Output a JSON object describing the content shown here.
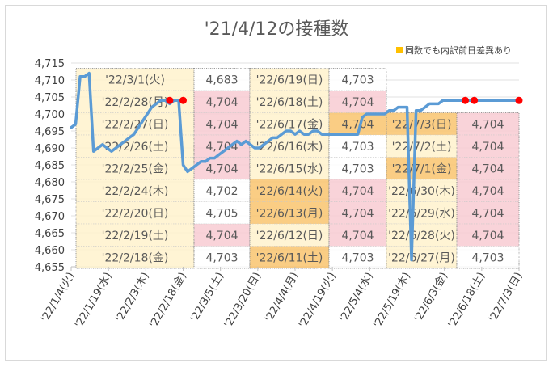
{
  "title": "'21/4/12の接種数",
  "legend": {
    "label": "同数でも内訳前日差異あり",
    "color": "#ffc000"
  },
  "colors": {
    "line": "#5b9bd5",
    "marker": "#ff0000",
    "cream": "#fff2cc",
    "pink": "#f8cbd2",
    "orange": "#f9c46e",
    "white": "#ffffff",
    "border": "#bfbfbf"
  },
  "chart_data": {
    "type": "line",
    "title": "'21/4/12の接種数",
    "xlabel": "",
    "ylabel": "",
    "ylim": [
      4655,
      4715
    ],
    "y_ticks": [
      "4,655",
      "4,660",
      "4,665",
      "4,670",
      "4,675",
      "4,680",
      "4,685",
      "4,690",
      "4,695",
      "4,700",
      "4,705",
      "4,710",
      "4,715"
    ],
    "x_ticks": [
      "'22/1/4(火)",
      "'22/1/19(水)",
      "'22/2/3(木)",
      "'22/2/18(金)",
      "'22/3/5(土)",
      "'22/3/20(日)",
      "'22/4/4(月)",
      "'22/4/19(火)",
      "'22/5/4(水)",
      "'22/5/19(木)",
      "'22/6/3(金)",
      "'22/6/18(土)",
      "'22/7/3(日)"
    ],
    "series": [
      {
        "values": [
          [
            0,
            4696
          ],
          [
            1,
            4697
          ],
          [
            2,
            4711
          ],
          [
            3,
            4711
          ],
          [
            4,
            4712
          ],
          [
            5,
            4689
          ],
          [
            6,
            4690
          ],
          [
            7,
            4691
          ],
          [
            8,
            4690
          ],
          [
            9,
            4689
          ],
          [
            10,
            4690
          ],
          [
            11,
            4691
          ],
          [
            12,
            4692
          ],
          [
            13,
            4693
          ],
          [
            14,
            4694
          ],
          [
            15,
            4696
          ],
          [
            16,
            4698
          ],
          [
            17,
            4700
          ],
          [
            18,
            4702
          ],
          [
            19,
            4703
          ],
          [
            20,
            4704
          ],
          [
            21,
            4704
          ],
          [
            22,
            4703
          ],
          [
            23,
            4704
          ],
          [
            24,
            4704
          ],
          [
            25,
            4685
          ],
          [
            26,
            4683
          ],
          [
            27,
            4684
          ],
          [
            28,
            4685
          ],
          [
            29,
            4686
          ],
          [
            30,
            4686
          ],
          [
            31,
            4687
          ],
          [
            32,
            4687
          ],
          [
            33,
            4688
          ],
          [
            34,
            4689
          ],
          [
            35,
            4690
          ],
          [
            36,
            4691
          ],
          [
            37,
            4692
          ],
          [
            38,
            4691
          ],
          [
            39,
            4692
          ],
          [
            40,
            4691
          ],
          [
            41,
            4690
          ],
          [
            42,
            4690
          ],
          [
            43,
            4691
          ],
          [
            44,
            4692
          ],
          [
            45,
            4693
          ],
          [
            46,
            4693
          ],
          [
            47,
            4694
          ],
          [
            48,
            4695
          ],
          [
            49,
            4695
          ],
          [
            50,
            4694
          ],
          [
            51,
            4695
          ],
          [
            52,
            4694
          ],
          [
            53,
            4694
          ],
          [
            54,
            4695
          ],
          [
            55,
            4695
          ],
          [
            56,
            4694
          ],
          [
            57,
            4694
          ],
          [
            58,
            4694
          ],
          [
            59,
            4694
          ],
          [
            60,
            4694
          ],
          [
            61,
            4694
          ],
          [
            62,
            4694
          ],
          [
            63,
            4694
          ],
          [
            64,
            4694
          ],
          [
            65,
            4699
          ],
          [
            66,
            4700
          ],
          [
            67,
            4700
          ],
          [
            68,
            4700
          ],
          [
            69,
            4700
          ],
          [
            70,
            4700
          ],
          [
            71,
            4701
          ],
          [
            72,
            4701
          ],
          [
            73,
            4702
          ],
          [
            74,
            4702
          ],
          [
            75,
            4702
          ],
          [
            76,
            4657
          ],
          [
            77,
            4701
          ],
          [
            78,
            4701
          ],
          [
            79,
            4702
          ],
          [
            80,
            4703
          ],
          [
            81,
            4703
          ],
          [
            82,
            4703
          ],
          [
            83,
            4704
          ],
          [
            84,
            4704
          ],
          [
            85,
            4704
          ],
          [
            86,
            4704
          ],
          [
            87,
            4704
          ],
          [
            88,
            4704
          ],
          [
            89,
            4704
          ],
          [
            90,
            4704
          ],
          [
            91,
            4704
          ],
          [
            92,
            4704
          ],
          [
            93,
            4704
          ],
          [
            94,
            4704
          ],
          [
            95,
            4704
          ],
          [
            96,
            4704
          ],
          [
            97,
            4704
          ],
          [
            98,
            4704
          ],
          [
            99,
            4704
          ],
          [
            100,
            4704
          ]
        ]
      }
    ],
    "markers": [
      [
        22,
        4704
      ],
      [
        25,
        4704
      ],
      [
        88,
        4704
      ],
      [
        90,
        4704
      ],
      [
        100,
        4704
      ]
    ],
    "x_range": [
      0,
      100
    ],
    "table": {
      "columns": [
        {
          "cells": [
            {
              "text": "'22/3/1(火)",
              "bg": "cream"
            },
            {
              "text": "'22/2/28(月)",
              "bg": "cream"
            },
            {
              "text": "'22/2/27(日)",
              "bg": "cream"
            },
            {
              "text": "'22/2/26(土)",
              "bg": "cream"
            },
            {
              "text": "'22/2/25(金)",
              "bg": "cream"
            },
            {
              "text": "'22/2/24(木)",
              "bg": "cream"
            },
            {
              "text": "'22/2/20(日)",
              "bg": "cream"
            },
            {
              "text": "'22/2/19(土)",
              "bg": "cream"
            },
            {
              "text": "'22/2/18(金)",
              "bg": "cream"
            }
          ]
        },
        {
          "cells": [
            {
              "text": "4,683",
              "bg": "white"
            },
            {
              "text": "4,704",
              "bg": "pink"
            },
            {
              "text": "4,704",
              "bg": "pink"
            },
            {
              "text": "4,704",
              "bg": "pink"
            },
            {
              "text": "4,704",
              "bg": "pink"
            },
            {
              "text": "4,702",
              "bg": "white"
            },
            {
              "text": "4,705",
              "bg": "white"
            },
            {
              "text": "4,704",
              "bg": "pink"
            },
            {
              "text": "4,703",
              "bg": "white"
            }
          ]
        },
        {
          "cells": [
            {
              "text": "'22/6/19(日)",
              "bg": "cream"
            },
            {
              "text": "'22/6/18(土)",
              "bg": "cream"
            },
            {
              "text": "'22/6/17(金)",
              "bg": "cream"
            },
            {
              "text": "'22/6/16(木)",
              "bg": "cream"
            },
            {
              "text": "'22/6/15(水)",
              "bg": "cream"
            },
            {
              "text": "'22/6/14(火)",
              "bg": "orange"
            },
            {
              "text": "'22/6/13(月)",
              "bg": "orange"
            },
            {
              "text": "'22/6/12(日)",
              "bg": "cream"
            },
            {
              "text": "'22/6/11(土)",
              "bg": "orange"
            }
          ]
        },
        {
          "cells": [
            {
              "text": "4,703",
              "bg": "white"
            },
            {
              "text": "4,704",
              "bg": "pink"
            },
            {
              "text": "4,704",
              "bg": "orange"
            },
            {
              "text": "4,703",
              "bg": "white"
            },
            {
              "text": "4,703",
              "bg": "white"
            },
            {
              "text": "4,704",
              "bg": "pink"
            },
            {
              "text": "4,704",
              "bg": "pink"
            },
            {
              "text": "4,704",
              "bg": "pink"
            },
            {
              "text": "4,703",
              "bg": "white"
            }
          ]
        },
        {
          "cells": [
            {
              "text": "'22/7/3(日)",
              "bg": "orange"
            },
            {
              "text": "'22/7/2(土)",
              "bg": "cream"
            },
            {
              "text": "'22/7/1(金)",
              "bg": "orange"
            },
            {
              "text": "'22/6/30(木)",
              "bg": "cream"
            },
            {
              "text": "'22/6/29(水)",
              "bg": "cream"
            },
            {
              "text": "'22/6/28(火)",
              "bg": "cream"
            },
            {
              "text": "'22/6/27(月)",
              "bg": "cream"
            }
          ]
        },
        {
          "cells": [
            {
              "text": "4,704",
              "bg": "pink"
            },
            {
              "text": "4,704",
              "bg": "pink"
            },
            {
              "text": "4,704",
              "bg": "pink"
            },
            {
              "text": "4,704",
              "bg": "pink"
            },
            {
              "text": "4,704",
              "bg": "pink"
            },
            {
              "text": "4,704",
              "bg": "pink"
            },
            {
              "text": "4,703",
              "bg": "white"
            }
          ]
        }
      ]
    }
  }
}
